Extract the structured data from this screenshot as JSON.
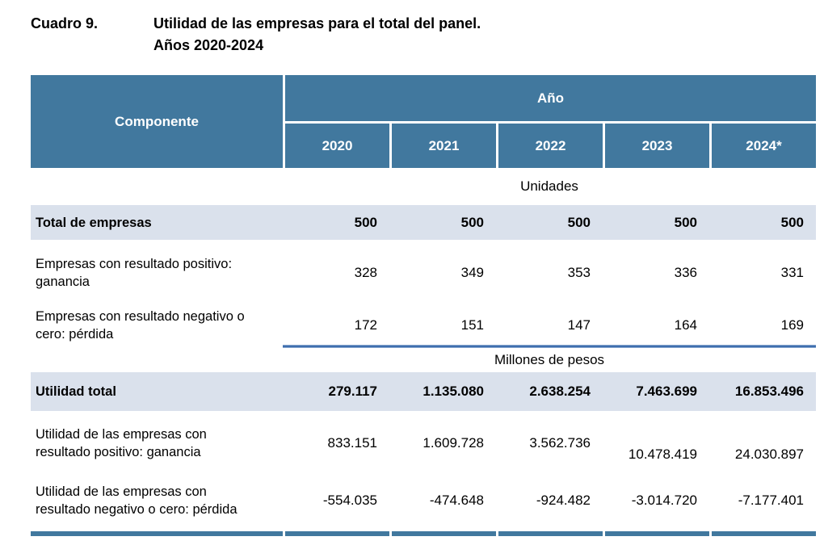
{
  "title": {
    "index": "Cuadro 9.",
    "line1": "Utilidad de las empresas para el total del panel.",
    "line2": "Años 2020-2024"
  },
  "table": {
    "component_header": "Componente",
    "year_group_header": "Año",
    "years": [
      "2020",
      "2021",
      "2022",
      "2023",
      "2024*"
    ],
    "section_units_label": "Unidades",
    "section_pesos_label": "Millones de pesos",
    "rows": [
      {
        "label": "Total de empresas",
        "values": [
          "500",
          "500",
          "500",
          "500",
          "500"
        ]
      },
      {
        "label": "Empresas con resultado positivo: ganancia",
        "values": [
          "328",
          "349",
          "353",
          "336",
          "331"
        ]
      },
      {
        "label": "Empresas con resultado negativo o cero: pérdida",
        "values": [
          "172",
          "151",
          "147",
          "164",
          "169"
        ]
      },
      {
        "label": "Utilidad total",
        "values": [
          "279.117",
          "1.135.080",
          "2.638.254",
          "7.463.699",
          "16.853.496"
        ]
      },
      {
        "label": "Utilidad de las empresas con resultado positivo: ganancia",
        "values": [
          "833.151",
          "1.609.728",
          "3.562.736",
          "10.478.419",
          "24.030.897"
        ]
      },
      {
        "label": "Utilidad de las empresas con resultado negativo o cero: pérdida",
        "values": [
          "-554.035",
          "-474.648",
          "-924.482",
          "-3.014.720",
          "-7.177.401"
        ]
      }
    ]
  },
  "colors": {
    "header_bg": "#41789e",
    "highlight_row_bg": "#dae1ec",
    "mid_rule_blue": "#3e6eae",
    "bottom_rule_blue": "#41789e"
  }
}
